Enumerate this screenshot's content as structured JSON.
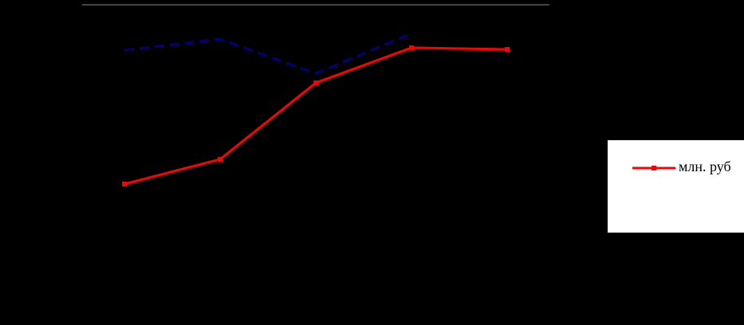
{
  "chart_data": {
    "type": "line",
    "categories": [
      null,
      null,
      null,
      null,
      null
    ],
    "series": [
      {
        "name": "млн. руб",
        "color": "#ff0000",
        "values": [
          35.7,
          44.6,
          72,
          84.6,
          84
        ]
      },
      {
        "color": "#000080",
        "dashed": true,
        "values": [
          83.7,
          87.7,
          75.4,
          89.7,
          null
        ]
      }
    ],
    "ylim": [
      0,
      100
    ]
  }
}
